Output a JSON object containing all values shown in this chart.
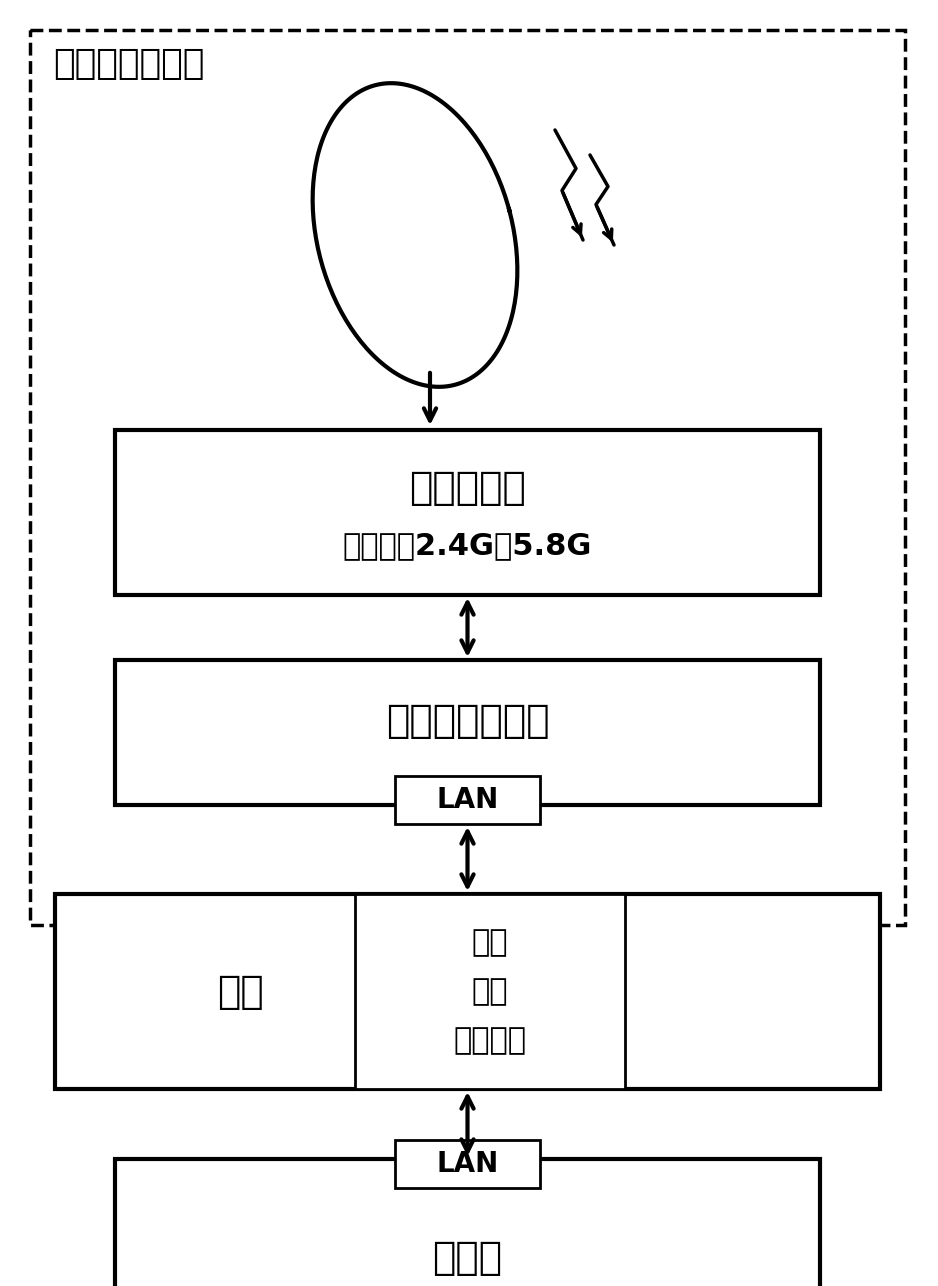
{
  "bg_color": "#ffffff",
  "line_color": "#000000",
  "title_label": "双频段探测设备",
  "receiver_label1": "接收机模块",
  "receiver_label2": "探测频段2.4G和5.8G",
  "embedded_label": "嵌入式主控模块",
  "lan_label": "LAN",
  "turntable_outer_label": "转台",
  "turntable_inner_label1": "滑环",
  "turntable_inner_label2": "电机",
  "turntable_inner_label3": "角度编码",
  "upper_computer_label": "上位机",
  "font_size_title": 26,
  "font_size_block": 28,
  "font_size_medium": 22,
  "font_size_lan": 20
}
